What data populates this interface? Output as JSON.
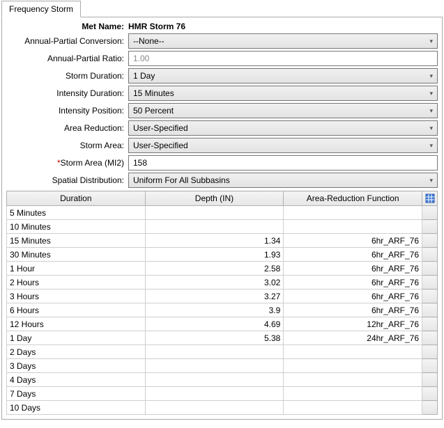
{
  "tab": {
    "label": "Frequency Storm"
  },
  "header": {
    "label": "Met Name:",
    "value": "HMR Storm 76"
  },
  "fields": {
    "annual_partial_conversion": {
      "label": "Annual-Partial Conversion:",
      "value": "--None--"
    },
    "annual_partial_ratio": {
      "label": "Annual-Partial Ratio:",
      "value": "1.00"
    },
    "storm_duration": {
      "label": "Storm Duration:",
      "value": "1 Day"
    },
    "intensity_duration": {
      "label": "Intensity Duration:",
      "value": "15 Minutes"
    },
    "intensity_position": {
      "label": "Intensity Position:",
      "value": "50 Percent"
    },
    "area_reduction": {
      "label": "Area Reduction:",
      "value": "User-Specified"
    },
    "storm_area_select": {
      "label": "Storm Area:",
      "value": "User-Specified"
    },
    "storm_area_mi2": {
      "star": "*",
      "label": "Storm Area (MI2)",
      "value": "158"
    },
    "spatial_distribution": {
      "label": "Spatial Distribution:",
      "value": "Uniform For All Subbasins"
    }
  },
  "table": {
    "columns": {
      "duration": "Duration",
      "depth": "Depth (IN)",
      "arf": "Area-Reduction Function"
    },
    "rows": [
      {
        "duration": "5 Minutes",
        "depth": "",
        "arf": ""
      },
      {
        "duration": "10 Minutes",
        "depth": "",
        "arf": ""
      },
      {
        "duration": "15 Minutes",
        "depth": "1.34",
        "arf": "6hr_ARF_76"
      },
      {
        "duration": "30 Minutes",
        "depth": "1.93",
        "arf": "6hr_ARF_76"
      },
      {
        "duration": "1 Hour",
        "depth": "2.58",
        "arf": "6hr_ARF_76"
      },
      {
        "duration": "2 Hours",
        "depth": "3.02",
        "arf": "6hr_ARF_76"
      },
      {
        "duration": "3 Hours",
        "depth": "3.27",
        "arf": "6hr_ARF_76"
      },
      {
        "duration": "6 Hours",
        "depth": "3.9",
        "arf": "6hr_ARF_76"
      },
      {
        "duration": "12 Hours",
        "depth": "4.69",
        "arf": "12hr_ARF_76"
      },
      {
        "duration": "1 Day",
        "depth": "5.38",
        "arf": "24hr_ARF_76"
      },
      {
        "duration": "2 Days",
        "depth": "",
        "arf": ""
      },
      {
        "duration": "3 Days",
        "depth": "",
        "arf": ""
      },
      {
        "duration": "4 Days",
        "depth": "",
        "arf": ""
      },
      {
        "duration": "7 Days",
        "depth": "",
        "arf": ""
      },
      {
        "duration": "10 Days",
        "depth": "",
        "arf": ""
      }
    ]
  }
}
